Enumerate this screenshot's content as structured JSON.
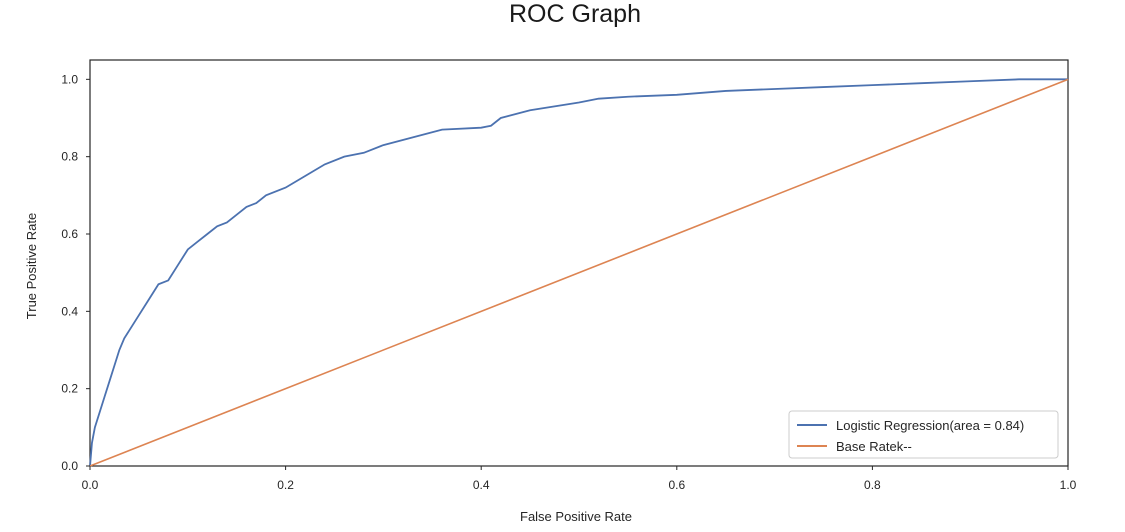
{
  "chart_data": {
    "type": "line",
    "title": "ROC Graph",
    "xlabel": "False Positive Rate",
    "ylabel": "True Positive Rate",
    "xlim": [
      0.0,
      1.0
    ],
    "ylim": [
      0.0,
      1.05
    ],
    "xticks": [
      "0.0",
      "0.2",
      "0.4",
      "0.6",
      "0.8",
      "1.0"
    ],
    "yticks": [
      "0.0",
      "0.2",
      "0.4",
      "0.6",
      "0.8",
      "1.0"
    ],
    "grid": false,
    "legend_position": "lower-right",
    "series": [
      {
        "name": "Logistic Regression(area = 0.84)",
        "color": "#4c72b0",
        "x": [
          0.0,
          0.002,
          0.005,
          0.01,
          0.015,
          0.02,
          0.025,
          0.03,
          0.035,
          0.04,
          0.05,
          0.06,
          0.07,
          0.08,
          0.09,
          0.1,
          0.11,
          0.12,
          0.13,
          0.14,
          0.15,
          0.16,
          0.17,
          0.18,
          0.2,
          0.22,
          0.24,
          0.26,
          0.28,
          0.3,
          0.33,
          0.36,
          0.4,
          0.41,
          0.42,
          0.45,
          0.5,
          0.52,
          0.55,
          0.6,
          0.65,
          0.7,
          0.75,
          0.8,
          0.85,
          0.9,
          0.95,
          1.0
        ],
        "y": [
          0.0,
          0.06,
          0.1,
          0.14,
          0.18,
          0.22,
          0.26,
          0.3,
          0.33,
          0.35,
          0.39,
          0.43,
          0.47,
          0.48,
          0.52,
          0.56,
          0.58,
          0.6,
          0.62,
          0.63,
          0.65,
          0.67,
          0.68,
          0.7,
          0.72,
          0.75,
          0.78,
          0.8,
          0.81,
          0.83,
          0.85,
          0.87,
          0.875,
          0.88,
          0.9,
          0.92,
          0.94,
          0.95,
          0.955,
          0.96,
          0.97,
          0.975,
          0.98,
          0.985,
          0.99,
          0.995,
          1.0,
          1.0
        ]
      },
      {
        "name": "Base Ratek--",
        "color": "#dd8452",
        "x": [
          0.0,
          1.0
        ],
        "y": [
          0.0,
          1.0
        ]
      }
    ]
  }
}
